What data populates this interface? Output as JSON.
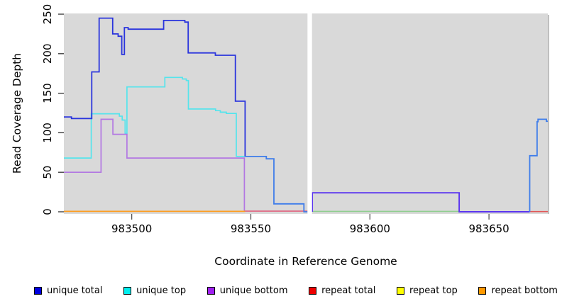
{
  "x_axis": {
    "label": "Coordinate in Reference Genome",
    "ticks": [
      983500,
      983550,
      983600,
      983650
    ]
  },
  "y_axis": {
    "label": "Read Coverage Depth",
    "ticks": [
      0,
      50,
      100,
      150,
      200,
      250
    ]
  },
  "legend": [
    {
      "label": "unique total",
      "color": "#0000e0"
    },
    {
      "label": "unique top",
      "color": "#00eeee"
    },
    {
      "label": "unique bottom",
      "color": "#a020f0"
    },
    {
      "label": "repeat total",
      "color": "#ee0000"
    },
    {
      "label": "repeat top",
      "color": "#ffff00"
    },
    {
      "label": "repeat bottom",
      "color": "#ff9900"
    }
  ],
  "chart_data": {
    "type": "line",
    "title": "",
    "xlabel": "Coordinate in Reference Genome",
    "ylabel": "Read Coverage Depth",
    "x_range": [
      983471.5,
      983674.7
    ],
    "y_range": [
      0,
      250
    ],
    "grid": false,
    "panel_background": "#d9d9d9",
    "no_data_gap_x": [
      983573.8,
      983575.7
    ],
    "lines": [
      {
        "name": "unique-top",
        "series": "unique top",
        "color": "#55e4ec",
        "width": 1.7,
        "points": [
          [
            983471.5,
            68
          ],
          [
            983483,
            68
          ],
          [
            983483,
            124
          ],
          [
            983494.8,
            124
          ],
          [
            983494.8,
            121
          ],
          [
            983496,
            121
          ],
          [
            983496,
            116
          ],
          [
            983497.2,
            116
          ],
          [
            983497.2,
            99
          ],
          [
            983498,
            99
          ],
          [
            983498,
            158
          ],
          [
            983513.9,
            158
          ],
          [
            983513.9,
            170
          ],
          [
            983521.3,
            170
          ],
          [
            983521.3,
            168
          ],
          [
            983522.9,
            168
          ],
          [
            983522.9,
            166
          ],
          [
            983523.8,
            166
          ],
          [
            983523.8,
            130
          ],
          [
            983535.2,
            130
          ],
          [
            983535.2,
            128
          ],
          [
            983537.2,
            128
          ],
          [
            983537.2,
            126
          ],
          [
            983539.7,
            126
          ],
          [
            983539.7,
            124.5
          ],
          [
            983543.9,
            124.5
          ],
          [
            983543.9,
            70
          ],
          [
            983547.6,
            70
          ]
        ]
      },
      {
        "name": "unique-bottom",
        "series": "unique bottom",
        "color": "#b277e2",
        "width": 1.7,
        "points": [
          [
            983471.5,
            50
          ],
          [
            983487.1,
            50
          ],
          [
            983487.1,
            117
          ],
          [
            983492.1,
            117
          ],
          [
            983492.1,
            98
          ],
          [
            983498,
            98
          ],
          [
            983498,
            68
          ],
          [
            983547.3,
            68
          ],
          [
            983547.3,
            1
          ]
        ]
      },
      {
        "name": "repeat-total-mid",
        "series": "repeat total + unique bottom at 0",
        "color": "#e0627f",
        "width": 1.6,
        "points": [
          [
            983547.3,
            0.8
          ],
          [
            983573.8,
            0.8
          ]
        ]
      },
      {
        "name": "repeat-top-after-gap",
        "series": "unique top + repeat top at 0",
        "color": "#8fce8f",
        "width": 1.6,
        "points": [
          [
            983575.8,
            0.5
          ],
          [
            983637.5,
            0.5
          ]
        ]
      },
      {
        "name": "repeat-total-right",
        "series": "repeat total at 0",
        "color": "#e25757",
        "width": 1.6,
        "points": [
          [
            983667.2,
            0.3
          ],
          [
            983674.7,
            0.3
          ]
        ]
      },
      {
        "name": "repeat-bottom",
        "series": "repeat bottom",
        "color": "#ff9d1e",
        "width": 1.7,
        "points": [
          [
            983471.5,
            0.5
          ],
          [
            983547.6,
            0.5
          ]
        ]
      },
      {
        "name": "unique-total-left",
        "series": "unique total",
        "color": "#2b35dd",
        "width": 1.8,
        "points": [
          [
            983471.5,
            120
          ],
          [
            983474.7,
            120
          ],
          [
            983474.7,
            118
          ],
          [
            983483.2,
            118
          ],
          [
            983483.2,
            177
          ],
          [
            983486.3,
            177
          ],
          [
            983486.3,
            245
          ],
          [
            983492,
            245
          ],
          [
            983492,
            225
          ],
          [
            983494.3,
            225
          ],
          [
            983494.3,
            222
          ],
          [
            983495.8,
            222
          ],
          [
            983495.8,
            199
          ],
          [
            983496.9,
            199
          ],
          [
            983496.9,
            233
          ],
          [
            983498.5,
            233
          ],
          [
            983498.5,
            231
          ],
          [
            983513.4,
            231
          ],
          [
            983513.4,
            242
          ],
          [
            983522.3,
            242
          ],
          [
            983522.3,
            240
          ],
          [
            983523.7,
            240
          ],
          [
            983523.7,
            201
          ],
          [
            983535.1,
            201
          ],
          [
            983535.1,
            198
          ],
          [
            983543.5,
            198
          ],
          [
            983543.5,
            140
          ],
          [
            983547.6,
            140
          ],
          [
            983547.6,
            70
          ]
        ]
      },
      {
        "name": "unique-total-mid",
        "series": "unique total over unique top",
        "color": "#3f7dea",
        "width": 1.8,
        "points": [
          [
            983547.6,
            70
          ],
          [
            983556.5,
            70
          ],
          [
            983556.5,
            67
          ],
          [
            983559.7,
            67
          ],
          [
            983559.7,
            10
          ],
          [
            983572.3,
            10
          ],
          [
            983572.3,
            0
          ],
          [
            983573.8,
            0
          ]
        ]
      },
      {
        "name": "unique-total-after-gap",
        "series": "unique total over unique bottom",
        "color": "#5b35f0",
        "width": 1.9,
        "points": [
          [
            983575.8,
            0
          ],
          [
            983575.8,
            24
          ],
          [
            983637.5,
            24
          ],
          [
            983637.5,
            0
          ],
          [
            983667.1,
            0
          ]
        ]
      },
      {
        "name": "unique-total-right",
        "series": "unique total",
        "color": "#3f7dea",
        "width": 1.8,
        "points": [
          [
            983667.1,
            0
          ],
          [
            983667.1,
            71
          ],
          [
            983670.2,
            71
          ],
          [
            983670.2,
            114
          ],
          [
            983670.6,
            114
          ],
          [
            983670.6,
            117
          ],
          [
            983674.1,
            117
          ],
          [
            983674.1,
            114.5
          ],
          [
            983674.7,
            114.5
          ]
        ]
      }
    ]
  }
}
